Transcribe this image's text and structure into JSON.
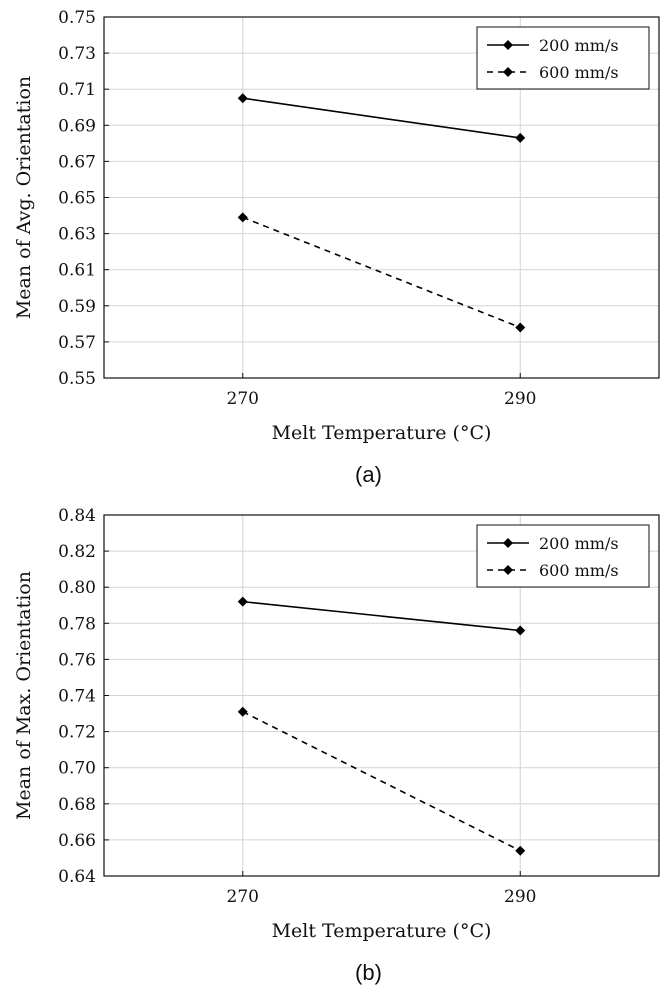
{
  "chart_data": [
    {
      "type": "line",
      "xlabel": "Melt Temperature (°C)",
      "ylabel": "Mean of Avg. Orientation",
      "caption": "(a)",
      "x": [
        270,
        290
      ],
      "xlim": [
        260,
        300
      ],
      "ylim": [
        0.55,
        0.75
      ],
      "yticks": [
        "0.55",
        "0.57",
        "0.59",
        "0.61",
        "0.63",
        "0.65",
        "0.67",
        "0.69",
        "0.71",
        "0.73",
        "0.75"
      ],
      "xticks": [
        "270",
        "290"
      ],
      "grid": true,
      "legend_position": "top-right",
      "series": [
        {
          "name": "200 mm/s",
          "values": [
            0.705,
            0.683
          ],
          "style": "solid",
          "marker": "diamond",
          "color": "#000000"
        },
        {
          "name": "600 mm/s",
          "values": [
            0.639,
            0.578
          ],
          "style": "dashed",
          "marker": "diamond",
          "color": "#000000"
        }
      ]
    },
    {
      "type": "line",
      "xlabel": "Melt Temperature (°C)",
      "ylabel": "Mean of Max. Orientation",
      "caption": "(b)",
      "x": [
        270,
        290
      ],
      "xlim": [
        260,
        300
      ],
      "ylim": [
        0.64,
        0.84
      ],
      "yticks": [
        "0.64",
        "0.66",
        "0.68",
        "0.70",
        "0.72",
        "0.74",
        "0.76",
        "0.78",
        "0.80",
        "0.82",
        "0.84"
      ],
      "xticks": [
        "270",
        "290"
      ],
      "grid": true,
      "legend_position": "top-right",
      "series": [
        {
          "name": "200 mm/s",
          "values": [
            0.792,
            0.776
          ],
          "style": "solid",
          "marker": "diamond",
          "color": "#000000"
        },
        {
          "name": "600 mm/s",
          "values": [
            0.731,
            0.654
          ],
          "style": "dashed",
          "marker": "diamond",
          "color": "#000000"
        }
      ]
    }
  ]
}
